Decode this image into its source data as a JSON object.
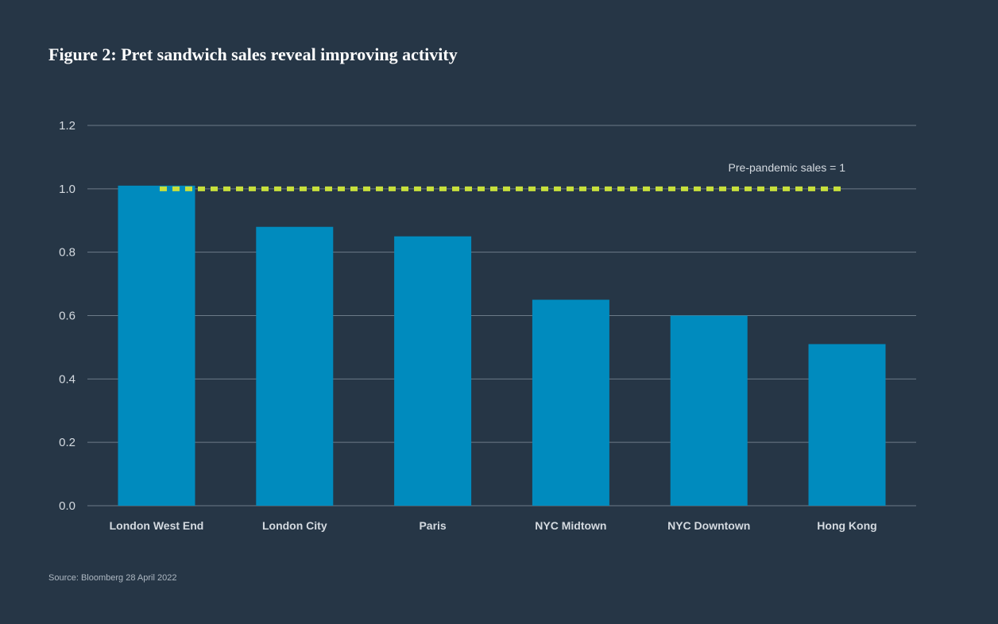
{
  "title": "Figure 2: Pret sandwich sales reveal improving activity",
  "source": "Source: Bloomberg 28 April 2022",
  "colors": {
    "background": "#263646",
    "bar": "#008bbe",
    "reference_line": "#c8e03c",
    "grid": "#6c7a88"
  },
  "chart_data": {
    "type": "bar",
    "categories": [
      "London West End",
      "London City",
      "Paris",
      "NYC Midtown",
      "NYC Downtown",
      "Hong Kong"
    ],
    "values": [
      1.01,
      0.88,
      0.85,
      0.65,
      0.6,
      0.51
    ],
    "title": "Figure 2: Pret sandwich sales reveal improving activity",
    "xlabel": "",
    "ylabel": "",
    "ylim": [
      0,
      1.2
    ],
    "yticks": [
      "0.0",
      "0.2",
      "0.4",
      "0.6",
      "0.8",
      "1.0",
      "1.2"
    ],
    "grid": true,
    "reference_line": {
      "value": 1.0,
      "label": "Pre-pandemic sales = 1",
      "style": "dashed"
    }
  }
}
